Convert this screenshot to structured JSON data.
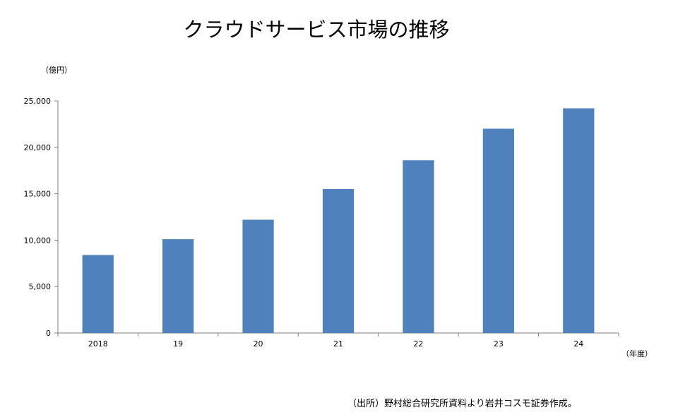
{
  "chart_data": {
    "type": "bar",
    "title": "クラウドサービス市場の推移",
    "ylabel": "（億円）",
    "xlabel": "（年度）",
    "categories": [
      "2018",
      "19",
      "20",
      "21",
      "22",
      "23",
      "24"
    ],
    "values": [
      8400,
      10100,
      12200,
      15500,
      18600,
      22000,
      24200
    ],
    "yticks": [
      "0",
      "5,000",
      "10,000",
      "15,000",
      "20,000",
      "25,000"
    ],
    "ylim": [
      0,
      25000
    ],
    "grid": false,
    "legend": "none",
    "bar_color": "#4f81bd"
  },
  "source": "（出所）野村総合研究所資料より岩井コスモ証券作成。"
}
